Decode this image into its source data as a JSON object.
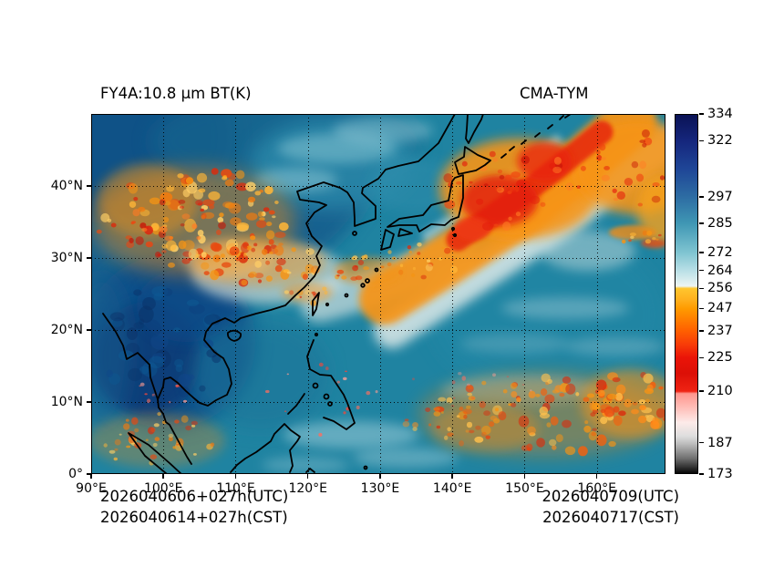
{
  "header": {
    "title_left": "FY4A:10.8 μm BT(K)",
    "title_right": "CMA-TYM"
  },
  "footer": {
    "utc_init": "2026040606+027h(UTC)",
    "cst_init": "2026040614+027h(CST)",
    "utc_valid": "2026040709(UTC)",
    "cst_valid": "2026040717(CST)"
  },
  "chart_data": {
    "type": "heatmap",
    "title": "FY4A:10.8 μm BT(K)",
    "model": "CMA-TYM",
    "units": "K",
    "x_axis": {
      "range": [
        90,
        169.5
      ],
      "ticks": [
        {
          "v": 90,
          "label": "90°E"
        },
        {
          "v": 100,
          "label": "100°E"
        },
        {
          "v": 110,
          "label": "110°E"
        },
        {
          "v": 120,
          "label": "120°E"
        },
        {
          "v": 130,
          "label": "130°E"
        },
        {
          "v": 140,
          "label": "140°E"
        },
        {
          "v": 150,
          "label": "150°E"
        },
        {
          "v": 160,
          "label": "160°E"
        }
      ]
    },
    "y_axis": {
      "range": [
        0,
        50
      ],
      "ticks": [
        {
          "v": 0,
          "label": "0°"
        },
        {
          "v": 10,
          "label": "10°N"
        },
        {
          "v": 20,
          "label": "20°N"
        },
        {
          "v": 30,
          "label": "30°N"
        },
        {
          "v": 40,
          "label": "40°N"
        }
      ]
    },
    "grid": {
      "show": true,
      "style": "dotted",
      "color": "#000000"
    },
    "colorbar": {
      "min": 173,
      "max": 334,
      "tick_values": [
        334,
        322,
        297,
        285,
        272,
        264,
        256,
        247,
        237,
        225,
        210,
        187,
        173
      ],
      "stops": [
        {
          "v": 334,
          "c": "#0a1254"
        },
        {
          "v": 322,
          "c": "#15267c"
        },
        {
          "v": 310,
          "c": "#1e4496"
        },
        {
          "v": 297,
          "c": "#2d6ca3"
        },
        {
          "v": 285,
          "c": "#3f97b4"
        },
        {
          "v": 272,
          "c": "#7fc4d1"
        },
        {
          "v": 264,
          "c": "#b9dfe6"
        },
        {
          "v": 257,
          "c": "#edf5f3"
        },
        {
          "v": 256,
          "c": "#ffc62e"
        },
        {
          "v": 251,
          "c": "#ffb01e"
        },
        {
          "v": 247,
          "c": "#ff9b00"
        },
        {
          "v": 237,
          "c": "#ff5f00"
        },
        {
          "v": 231,
          "c": "#f83c08"
        },
        {
          "v": 225,
          "c": "#ea1408"
        },
        {
          "v": 218,
          "c": "#dc1007"
        },
        {
          "v": 210,
          "c": "#ef2313"
        },
        {
          "v": 209,
          "c": "#ff958d"
        },
        {
          "v": 203,
          "c": "#ffbcb6"
        },
        {
          "v": 196,
          "c": "#fdebe9"
        },
        {
          "v": 190,
          "c": "#dedede"
        },
        {
          "v": 187,
          "c": "#c2c2c2"
        },
        {
          "v": 180,
          "c": "#707070"
        },
        {
          "v": 173,
          "c": "#000000"
        }
      ]
    },
    "features": [
      {
        "name": "mid-latitude frontal cloud band",
        "approx_extent": "128-169E, 27-50N",
        "bt": "210-250 K"
      },
      {
        "name": "convective cloud cluster over SW China",
        "approx_extent": "92-118E, 25-40N",
        "bt": "225-255 K"
      },
      {
        "name": "ITCZ convection cluster",
        "approx_extent": "133-169E, 0-13N",
        "bt": "210-250 K"
      },
      {
        "name": "clear warm ocean",
        "bt": "285-295 K"
      },
      {
        "name": "very warm land surface over Indochina",
        "approx_extent": "93-108E, 8-27N",
        "bt": "300-320 K"
      }
    ]
  }
}
